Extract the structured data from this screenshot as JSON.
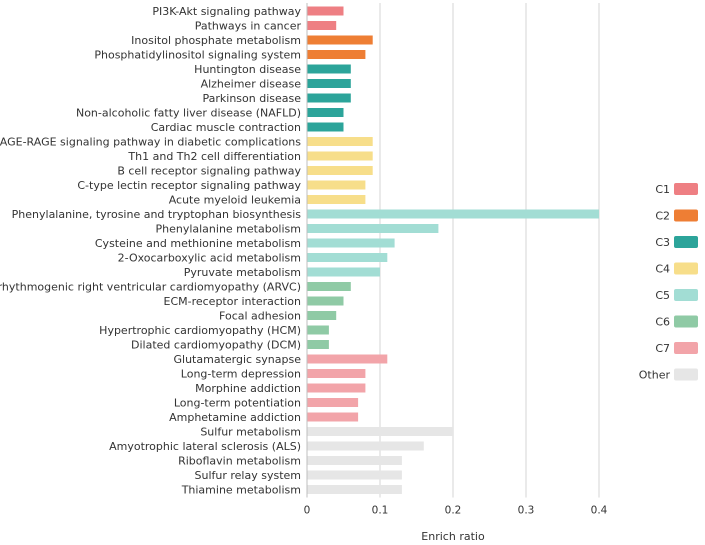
{
  "chart_data": {
    "type": "bar",
    "orientation": "horizontal",
    "xlabel": "Enrich ratio",
    "ylabel": "",
    "xlim": [
      0,
      0.4
    ],
    "xticks": [
      0,
      0.1,
      0.2,
      0.3,
      0.4
    ],
    "xtick_labels": [
      "0",
      "0.1",
      "0.2",
      "0.3",
      "0.4"
    ],
    "grid": "vertical",
    "legend_position": "right",
    "groups": [
      {
        "name": "C1",
        "color": "#EE7F83"
      },
      {
        "name": "C2",
        "color": "#EE7E34"
      },
      {
        "name": "C3",
        "color": "#2CA49A"
      },
      {
        "name": "C4",
        "color": "#F7DE8A"
      },
      {
        "name": "C5",
        "color": "#A2DDD4"
      },
      {
        "name": "C6",
        "color": "#8FCAA5"
      },
      {
        "name": "C7",
        "color": "#F2A4A9"
      },
      {
        "name": "Other",
        "color": "#E6E6E6"
      }
    ],
    "bars": [
      {
        "label": "PI3K-Akt signaling pathway",
        "value": 0.05,
        "group": "C1"
      },
      {
        "label": "Pathways in cancer",
        "value": 0.04,
        "group": "C1"
      },
      {
        "label": "Inositol phosphate metabolism",
        "value": 0.09,
        "group": "C2"
      },
      {
        "label": "Phosphatidylinositol signaling system",
        "value": 0.08,
        "group": "C2"
      },
      {
        "label": "Huntington disease",
        "value": 0.06,
        "group": "C3"
      },
      {
        "label": "Alzheimer disease",
        "value": 0.06,
        "group": "C3"
      },
      {
        "label": "Parkinson disease",
        "value": 0.06,
        "group": "C3"
      },
      {
        "label": "Non-alcoholic fatty liver disease (NAFLD)",
        "value": 0.05,
        "group": "C3"
      },
      {
        "label": "Cardiac muscle contraction",
        "value": 0.05,
        "group": "C3"
      },
      {
        "label": "AGE-RAGE signaling pathway in diabetic complications",
        "value": 0.09,
        "group": "C4"
      },
      {
        "label": "Th1 and Th2 cell differentiation",
        "value": 0.09,
        "group": "C4"
      },
      {
        "label": "B cell receptor signaling pathway",
        "value": 0.09,
        "group": "C4"
      },
      {
        "label": "C-type lectin receptor signaling pathway",
        "value": 0.08,
        "group": "C4"
      },
      {
        "label": "Acute myeloid leukemia",
        "value": 0.08,
        "group": "C4"
      },
      {
        "label": "Phenylalanine, tyrosine and tryptophan biosynthesis",
        "value": 0.4,
        "group": "C5"
      },
      {
        "label": "Phenylalanine metabolism",
        "value": 0.18,
        "group": "C5"
      },
      {
        "label": "Cysteine and methionine metabolism",
        "value": 0.12,
        "group": "C5"
      },
      {
        "label": "2-Oxocarboxylic acid metabolism",
        "value": 0.11,
        "group": "C5"
      },
      {
        "label": "Pyruvate metabolism",
        "value": 0.1,
        "group": "C5"
      },
      {
        "label": "Arrhythmogenic right ventricular cardiomyopathy (ARVC)",
        "value": 0.06,
        "group": "C6"
      },
      {
        "label": "ECM-receptor interaction",
        "value": 0.05,
        "group": "C6"
      },
      {
        "label": "Focal adhesion",
        "value": 0.04,
        "group": "C6"
      },
      {
        "label": "Hypertrophic cardiomyopathy (HCM)",
        "value": 0.03,
        "group": "C6"
      },
      {
        "label": "Dilated cardiomyopathy (DCM)",
        "value": 0.03,
        "group": "C6"
      },
      {
        "label": "Glutamatergic synapse",
        "value": 0.11,
        "group": "C7"
      },
      {
        "label": "Long-term depression",
        "value": 0.08,
        "group": "C7"
      },
      {
        "label": "Morphine addiction",
        "value": 0.08,
        "group": "C7"
      },
      {
        "label": "Long-term potentiation",
        "value": 0.07,
        "group": "C7"
      },
      {
        "label": "Amphetamine addiction",
        "value": 0.07,
        "group": "C7"
      },
      {
        "label": "Sulfur metabolism",
        "value": 0.2,
        "group": "Other"
      },
      {
        "label": "Amyotrophic lateral sclerosis (ALS)",
        "value": 0.16,
        "group": "Other"
      },
      {
        "label": "Riboflavin metabolism",
        "value": 0.13,
        "group": "Other"
      },
      {
        "label": "Sulfur relay system",
        "value": 0.13,
        "group": "Other"
      },
      {
        "label": "Thiamine metabolism",
        "value": 0.13,
        "group": "Other"
      }
    ]
  }
}
